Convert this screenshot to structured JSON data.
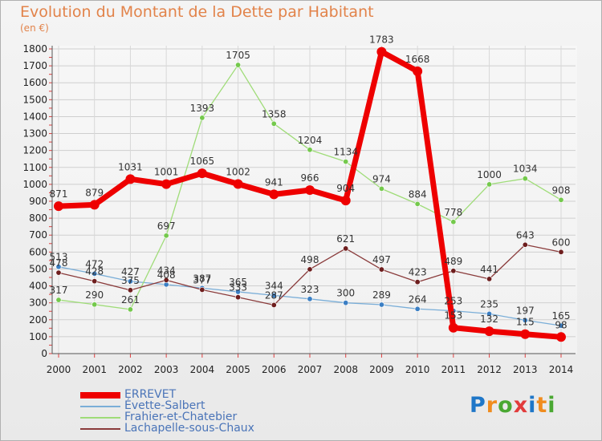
{
  "title": "Evolution du Montant de la Dette par Habitant",
  "unit": "(en €)",
  "logo": {
    "text": "Proxiti",
    "letter_colors": [
      "#1f77c8",
      "#f08c1e",
      "#4aa832",
      "#e23b3b",
      "#1f77c8",
      "#f08c1e",
      "#4aa832"
    ]
  },
  "chart_data": {
    "type": "line",
    "x": [
      "2000",
      "2001",
      "2002",
      "2003",
      "2004",
      "2005",
      "2006",
      "2007",
      "2008",
      "2009",
      "2010",
      "2011",
      "2012",
      "2013",
      "2014"
    ],
    "ylim": [
      0,
      1800
    ],
    "yticks": [
      0,
      100,
      200,
      300,
      400,
      500,
      600,
      700,
      800,
      900,
      1000,
      1100,
      1200,
      1300,
      1400,
      1500,
      1600,
      1700,
      1800
    ],
    "grid": true,
    "legend_position": "bottom-left",
    "series": [
      {
        "name": "ERREVET",
        "color": "#ee0000",
        "dot": "#ee0000",
        "width": 7,
        "radius": 6,
        "labels": true,
        "values": [
          871,
          879,
          1031,
          1001,
          1065,
          1002,
          941,
          966,
          904,
          1783,
          1668,
          153,
          132,
          115,
          98
        ]
      },
      {
        "name": "Évette-Salbert",
        "color": "#7aaed8",
        "dot": "#3b7fc4",
        "width": 1.3,
        "radius": 3.2,
        "labels": true,
        "values": [
          513,
          472,
          427,
          408,
          387,
          365,
          344,
          323,
          300,
          289,
          264,
          253,
          235,
          197,
          165
        ]
      },
      {
        "name": "Frahier-et-Chatebier",
        "color": "#9fdc78",
        "dot": "#74c94c",
        "width": 1.3,
        "radius": 3.2,
        "labels": true,
        "values": [
          317,
          290,
          261,
          697,
          1393,
          1705,
          1358,
          1204,
          1134,
          974,
          884,
          778,
          1000,
          1034,
          908
        ]
      },
      {
        "name": "Lachapelle-sous-Chaux",
        "color": "#8a3b3b",
        "dot": "#6e1e1e",
        "width": 1.3,
        "radius": 3.2,
        "labels": true,
        "values": [
          478,
          428,
          375,
          434,
          377,
          333,
          287,
          498,
          621,
          497,
          423,
          489,
          441,
          643,
          600
        ]
      }
    ]
  }
}
